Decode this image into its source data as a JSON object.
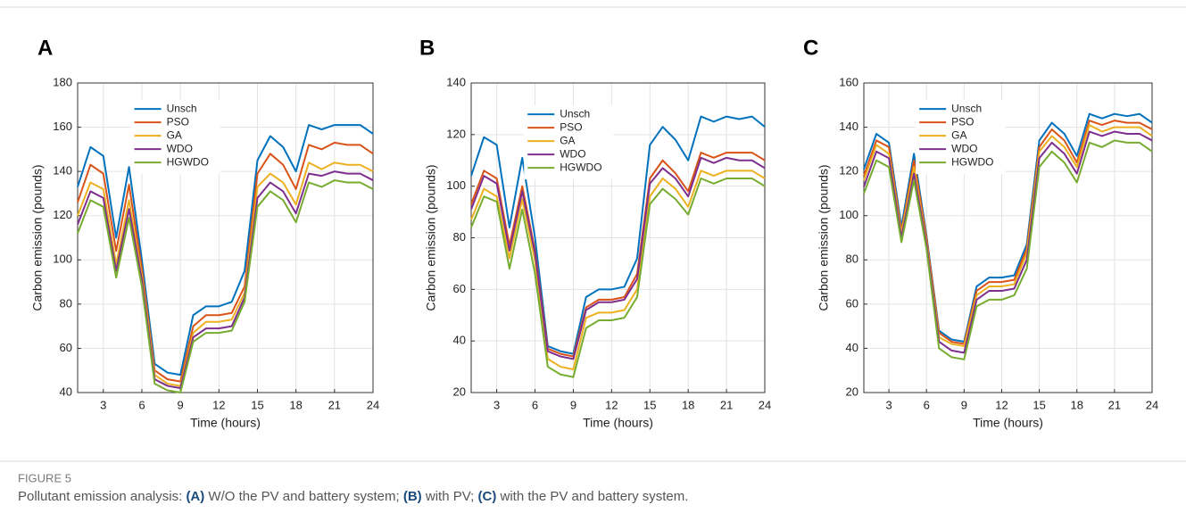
{
  "chart_data": [
    {
      "type": "line",
      "panel_label": "A",
      "xlabel": "Time (hours)",
      "ylabel": "Carbon emission (pounds)",
      "x": [
        1,
        2,
        3,
        4,
        5,
        6,
        7,
        8,
        9,
        10,
        11,
        12,
        13,
        14,
        15,
        16,
        17,
        18,
        19,
        20,
        21,
        22,
        23,
        24
      ],
      "xlim": [
        1,
        24
      ],
      "xticks": [
        3,
        6,
        9,
        12,
        15,
        18,
        21,
        24
      ],
      "ylim": [
        40,
        180
      ],
      "yticks": [
        40,
        60,
        80,
        100,
        120,
        140,
        160,
        180
      ],
      "grid": true,
      "legend": "north",
      "series": [
        {
          "name": "Unsch",
          "color": "#0072BD",
          "values": [
            133,
            151,
            147,
            110,
            142,
            100,
            53,
            49,
            48,
            75,
            79,
            79,
            81,
            95,
            145,
            156,
            151,
            140,
            161,
            159,
            161,
            161,
            161,
            157
          ]
        },
        {
          "name": "PSO",
          "color": "#D95319",
          "values": [
            126,
            143,
            139,
            104,
            134,
            96,
            50,
            46,
            45,
            70,
            75,
            75,
            76,
            88,
            139,
            148,
            143,
            132,
            152,
            150,
            153,
            152,
            152,
            148
          ]
        },
        {
          "name": "GA",
          "color": "#EDB120",
          "values": [
            120,
            135,
            132,
            98,
            127,
            93,
            48,
            44,
            43,
            67,
            72,
            72,
            73,
            85,
            133,
            139,
            135,
            125,
            144,
            141,
            144,
            143,
            143,
            140
          ]
        },
        {
          "name": "WDO",
          "color": "#7E2F8E",
          "values": [
            116,
            131,
            128,
            95,
            123,
            91,
            46,
            43,
            42,
            65,
            69,
            69,
            70,
            83,
            128,
            135,
            131,
            121,
            139,
            138,
            140,
            139,
            139,
            136
          ]
        },
        {
          "name": "HGWDO",
          "color": "#77AC30",
          "values": [
            112,
            127,
            124,
            92,
            119,
            88,
            44,
            41,
            40,
            63,
            67,
            67,
            68,
            81,
            124,
            131,
            127,
            117,
            135,
            133,
            136,
            135,
            135,
            132
          ]
        }
      ]
    },
    {
      "type": "line",
      "panel_label": "B",
      "xlabel": "Time (hours)",
      "ylabel": "Carbon emission (pounds)",
      "x": [
        1,
        2,
        3,
        4,
        5,
        6,
        7,
        8,
        9,
        10,
        11,
        12,
        13,
        14,
        15,
        16,
        17,
        18,
        19,
        20,
        21,
        22,
        23,
        24
      ],
      "xlim": [
        1,
        24
      ],
      "xticks": [
        3,
        6,
        9,
        12,
        15,
        18,
        21,
        24
      ],
      "ylim": [
        20,
        140
      ],
      "yticks": [
        20,
        40,
        60,
        80,
        100,
        120,
        140
      ],
      "grid": true,
      "legend": "north",
      "series": [
        {
          "name": "Unsch",
          "color": "#0072BD",
          "values": [
            104,
            119,
            116,
            84,
            111,
            80,
            38,
            36,
            35,
            57,
            60,
            60,
            61,
            72,
            116,
            123,
            118,
            110,
            127,
            125,
            127,
            126,
            127,
            123
          ]
        },
        {
          "name": "PSO",
          "color": "#D95319",
          "values": [
            93,
            106,
            103,
            77,
            100,
            75,
            37,
            35,
            34,
            53,
            56,
            56,
            57,
            66,
            103,
            110,
            105,
            98,
            113,
            111,
            113,
            113,
            113,
            110
          ]
        },
        {
          "name": "GA",
          "color": "#EDB120",
          "values": [
            87,
            99,
            96,
            72,
            95,
            71,
            33,
            30,
            29,
            49,
            51,
            51,
            52,
            60,
            96,
            103,
            99,
            92,
            106,
            104,
            106,
            106,
            106,
            103
          ]
        },
        {
          "name": "WDO",
          "color": "#7E2F8E",
          "values": [
            91,
            104,
            101,
            75,
            98,
            74,
            36,
            34,
            33,
            52,
            55,
            55,
            56,
            64,
            101,
            107,
            103,
            96,
            111,
            109,
            111,
            110,
            110,
            107
          ]
        },
        {
          "name": "HGWDO",
          "color": "#77AC30",
          "values": [
            84,
            96,
            94,
            68,
            91,
            66,
            30,
            27,
            26,
            45,
            48,
            48,
            49,
            57,
            93,
            99,
            95,
            89,
            103,
            101,
            103,
            103,
            103,
            100
          ]
        }
      ]
    },
    {
      "type": "line",
      "panel_label": "C",
      "xlabel": "Time (hours)",
      "ylabel": "Carbon emission (pounds)",
      "x": [
        1,
        2,
        3,
        4,
        5,
        6,
        7,
        8,
        9,
        10,
        11,
        12,
        13,
        14,
        15,
        16,
        17,
        18,
        19,
        20,
        21,
        22,
        23,
        24
      ],
      "xlim": [
        1,
        24
      ],
      "xticks": [
        3,
        6,
        9,
        12,
        15,
        18,
        21,
        24
      ],
      "ylim": [
        20,
        160
      ],
      "yticks": [
        20,
        40,
        60,
        80,
        100,
        120,
        140,
        160
      ],
      "grid": true,
      "legend": "north",
      "series": [
        {
          "name": "Unsch",
          "color": "#0072BD",
          "values": [
            121,
            137,
            133,
            95,
            128,
            91,
            48,
            44,
            43,
            68,
            72,
            72,
            73,
            87,
            134,
            142,
            137,
            127,
            146,
            144,
            146,
            145,
            146,
            142
          ]
        },
        {
          "name": "PSO",
          "color": "#D95319",
          "values": [
            118,
            134,
            131,
            93,
            125,
            90,
            47,
            43,
            42,
            66,
            70,
            70,
            71,
            85,
            131,
            139,
            134,
            124,
            143,
            141,
            143,
            142,
            142,
            139
          ]
        },
        {
          "name": "GA",
          "color": "#EDB120",
          "values": [
            116,
            132,
            128,
            92,
            122,
            88,
            45,
            42,
            41,
            64,
            68,
            68,
            69,
            83,
            129,
            136,
            131,
            122,
            141,
            138,
            140,
            140,
            140,
            136
          ]
        },
        {
          "name": "WDO",
          "color": "#7E2F8E",
          "values": [
            113,
            129,
            126,
            90,
            119,
            87,
            43,
            39,
            38,
            62,
            66,
            66,
            67,
            80,
            126,
            133,
            128,
            119,
            138,
            136,
            138,
            137,
            137,
            134
          ]
        },
        {
          "name": "HGWDO",
          "color": "#77AC30",
          "values": [
            110,
            125,
            122,
            88,
            116,
            85,
            40,
            36,
            35,
            59,
            62,
            62,
            64,
            76,
            122,
            129,
            124,
            115,
            133,
            131,
            134,
            133,
            133,
            129
          ]
        }
      ]
    }
  ],
  "caption": {
    "label": "FIGURE 5",
    "parts": [
      {
        "text": "Pollutant emission analysis: ",
        "bold": false
      },
      {
        "text": "(A)",
        "bold": true
      },
      {
        "text": " W/O the PV and battery system; ",
        "bold": false
      },
      {
        "text": "(B)",
        "bold": true
      },
      {
        "text": " with PV; ",
        "bold": false
      },
      {
        "text": "(C)",
        "bold": true
      },
      {
        "text": " with the PV and battery system.",
        "bold": false
      }
    ]
  }
}
